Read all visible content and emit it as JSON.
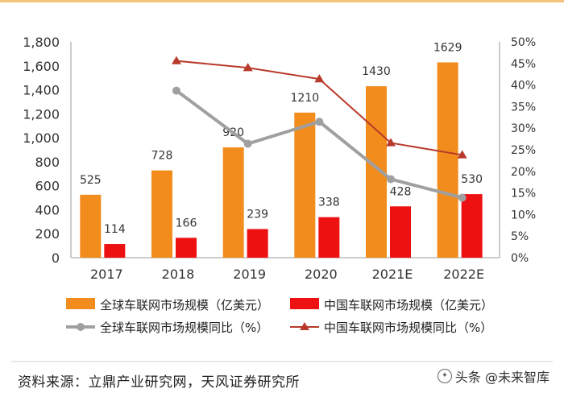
{
  "chart_data": {
    "type": "bar",
    "categories": [
      "2017",
      "2018",
      "2019",
      "2020",
      "2021E",
      "2022E"
    ],
    "series": [
      {
        "name": "全球车联网市场规模（亿美元）",
        "type": "bar",
        "axis": "left",
        "color": "#f28c1c",
        "values": [
          525,
          728,
          920,
          1210,
          1430,
          1629
        ]
      },
      {
        "name": "中国车联网市场规模（亿美元）",
        "type": "bar",
        "axis": "left",
        "color": "#ee1111",
        "values": [
          114,
          166,
          239,
          338,
          428,
          530
        ]
      },
      {
        "name": "全球车联网市场规模同比（%）",
        "type": "line",
        "axis": "right",
        "color": "#a0a0a0",
        "marker": "circle",
        "x": [
          "2018",
          "2019",
          "2020",
          "2021E",
          "2022E"
        ],
        "values": [
          38.7,
          26.4,
          31.5,
          18.2,
          13.9
        ]
      },
      {
        "name": "中国车联网市场规模同比（%）",
        "type": "line",
        "axis": "right",
        "color": "#b83a2a",
        "marker": "triangle",
        "x": [
          "2018",
          "2019",
          "2020",
          "2021E",
          "2022E"
        ],
        "values": [
          45.6,
          44.0,
          41.4,
          26.6,
          23.8
        ]
      }
    ],
    "bar_labels": {
      "global": [
        "525",
        "728",
        "920",
        "1210",
        "1430",
        "1629"
      ],
      "china": [
        "114",
        "166",
        "239",
        "338",
        "428",
        "530"
      ]
    },
    "y_left": {
      "min": 0,
      "max": 1800,
      "step": 200,
      "tick_labels": [
        "0",
        "200",
        "400",
        "600",
        "800",
        "1,000",
        "1,200",
        "1,400",
        "1,600",
        "1,800"
      ]
    },
    "y_right": {
      "min": 0,
      "max": 50,
      "step": 5,
      "tick_labels": [
        "0%",
        "5%",
        "10%",
        "15%",
        "20%",
        "25%",
        "30%",
        "35%",
        "40%",
        "45%",
        "50%"
      ]
    },
    "legend_position": "bottom",
    "grid": false
  },
  "footer": {
    "source": "资料来源：立鼎产业研究网，天风证券研究所",
    "watermark": "头条 @未来智库"
  }
}
